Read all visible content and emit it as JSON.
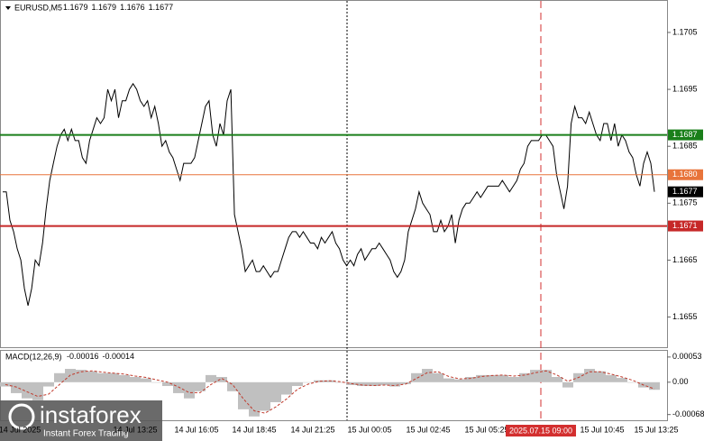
{
  "chart_data": [
    {
      "type": "line",
      "symbol": "EURUSD,M5",
      "ohlc": [
        1.1679,
        1.1679,
        1.1676,
        1.1677
      ],
      "color": "#000000",
      "values": [
        1.1677,
        1.1677,
        1.1672,
        1.167,
        1.1667,
        1.1665,
        1.166,
        1.1657,
        1.166,
        1.1665,
        1.1664,
        1.1668,
        1.1674,
        1.1679,
        1.1682,
        1.1685,
        1.1687,
        1.1688,
        1.1686,
        1.1688,
        1.1686,
        1.1686,
        1.1683,
        1.1682,
        1.1686,
        1.1688,
        1.169,
        1.1689,
        1.169,
        1.1695,
        1.1693,
        1.1695,
        1.169,
        1.1693,
        1.1693,
        1.1695,
        1.1696,
        1.1695,
        1.1693,
        1.1692,
        1.1693,
        1.169,
        1.1692,
        1.1689,
        1.1685,
        1.1686,
        1.1684,
        1.1683,
        1.1681,
        1.1679,
        1.1682,
        1.1682,
        1.1682,
        1.1683,
        1.1686,
        1.1689,
        1.1692,
        1.1693,
        1.1687,
        1.1685,
        1.1689,
        1.1687,
        1.1693,
        1.1695,
        1.1673,
        1.167,
        1.1667,
        1.1663,
        1.1664,
        1.1665,
        1.1663,
        1.1663,
        1.1664,
        1.1663,
        1.1662,
        1.1663,
        1.1663,
        1.1665,
        1.1667,
        1.1669,
        1.167,
        1.167,
        1.1669,
        1.167,
        1.1669,
        1.1668,
        1.1668,
        1.1667,
        1.1669,
        1.1668,
        1.1669,
        1.167,
        1.1668,
        1.1667,
        1.1665,
        1.1664,
        1.1665,
        1.1664,
        1.1666,
        1.1667,
        1.1665,
        1.1666,
        1.1667,
        1.1667,
        1.1668,
        1.1667,
        1.1666,
        1.1665,
        1.1663,
        1.1662,
        1.1663,
        1.1665,
        1.167,
        1.1672,
        1.1674,
        1.1677,
        1.1675,
        1.1674,
        1.1673,
        1.167,
        1.167,
        1.1672,
        1.167,
        1.1671,
        1.1673,
        1.1668,
        1.1672,
        1.1674,
        1.1675,
        1.1675,
        1.1676,
        1.1677,
        1.1676,
        1.1677,
        1.1678,
        1.1678,
        1.1678,
        1.1678,
        1.1679,
        1.1678,
        1.1677,
        1.1678,
        1.1679,
        1.1681,
        1.1682,
        1.1685,
        1.1686,
        1.1686,
        1.1686,
        1.1687,
        1.1687,
        1.1686,
        1.1685,
        1.168,
        1.1677,
        1.1674,
        1.1678,
        1.1689,
        1.1692,
        1.169,
        1.169,
        1.1689,
        1.1691,
        1.1689,
        1.1687,
        1.1686,
        1.1689,
        1.1689,
        1.1686,
        1.1689,
        1.1685,
        1.1687,
        1.1686,
        1.1684,
        1.1683,
        1.168,
        1.1678,
        1.1682,
        1.1684,
        1.1682,
        1.1677
      ],
      "ylim": [
        1.16497,
        1.17107
      ],
      "yticks": [
        1.1705,
        1.1695,
        1.1685,
        1.1675,
        1.1665,
        1.1655
      ],
      "levels": [
        {
          "value": 1.1687,
          "color": "#1a7f1a"
        },
        {
          "value": {
            "value": 1.168,
            "label": "1.1680"
          },
          "color": "#e8743b"
        },
        {
          "value": 1.1671,
          "color": "#c62828"
        }
      ],
      "current": 1.1677,
      "x_labels": [
        "14 Jul 2025",
        "14 Jul 13:25",
        "14 Jul 16:05",
        "14 Jul 18:45",
        "14 Jul 21:25",
        "15 Jul 00:05",
        "15 Jul 02:45",
        "15 Jul 05:25",
        "15 Jul 10:45",
        "15 Jul 13:25"
      ],
      "cursor_label": "2025.07.15 09:00"
    },
    {
      "type": "macd",
      "label": "MACD(12,26,9)",
      "macd_value": -0.00016,
      "signal_value": -0.00014,
      "histogram_color": "#c0c0c0",
      "signal_color": "#c0392b",
      "histogram": [
        -9e-05,
        -0.00023,
        -0.00034,
        -0.00038,
        -9e-05,
        0.00019,
        0.00028,
        0.00026,
        0.00023,
        0.00019,
        0.00019,
        0.00015,
        0.00011,
        8e-05,
        0,
        -8e-05,
        -0.00023,
        -0.00034,
        -0.00019,
        0.00015,
        0.00011,
        -0.00019,
        -0.00057,
        -0.00072,
        -0.0006,
        -0.00042,
        -0.00026,
        -8e-05,
        0,
        4e-05,
        4e-05,
        0,
        -6e-05,
        -8e-05,
        -8e-05,
        -6e-05,
        -9e-05,
        -4e-05,
        0.00019,
        0.00028,
        0.00019,
        8e-05,
        6e-05,
        0.00011,
        0.00015,
        0.00015,
        0.00015,
        0.00011,
        0.00019,
        0.00026,
        0.00026,
        0.00011,
        -0.00011,
        0.00019,
        0.00028,
        0.00023,
        0.00015,
        9e-05,
        0,
        -0.00011,
        -0.00016
      ],
      "signal": [
        -5e-05,
        -0.0001,
        -0.0002,
        -0.0003,
        -0.00025,
        -5e-05,
        0.00015,
        0.00022,
        0.00024,
        0.00021,
        0.00019,
        0.00017,
        0.00013,
        0.0001,
        5e-05,
        0,
        -0.0001,
        -0.00022,
        -0.00022,
        -5e-05,
        8e-05,
        -5e-05,
        -0.00035,
        -0.0006,
        -0.00065,
        -0.00052,
        -0.00035,
        -0.00015,
        -4e-05,
        2e-05,
        3e-05,
        1e-05,
        -3e-05,
        -6e-05,
        -7e-05,
        -6e-05,
        -7e-05,
        -4e-05,
        8e-05,
        0.0002,
        0.00022,
        0.00012,
        7e-05,
        8e-05,
        0.00012,
        0.00014,
        0.00015,
        0.00013,
        0.00015,
        0.0002,
        0.00024,
        0.00015,
        2e-05,
        0.0001,
        0.00022,
        0.00022,
        0.00017,
        0.00011,
        4e-05,
        -6e-05,
        -0.00014
      ],
      "ylim": [
        -0.0008,
        0.00066
      ],
      "yticks": [
        0.00053,
        {
          "value": 0,
          "label": "0.00"
        },
        -0.00068
      ]
    }
  ],
  "watermark": {
    "brand": "instaforex",
    "slogan": "Instant Forex Trading"
  }
}
